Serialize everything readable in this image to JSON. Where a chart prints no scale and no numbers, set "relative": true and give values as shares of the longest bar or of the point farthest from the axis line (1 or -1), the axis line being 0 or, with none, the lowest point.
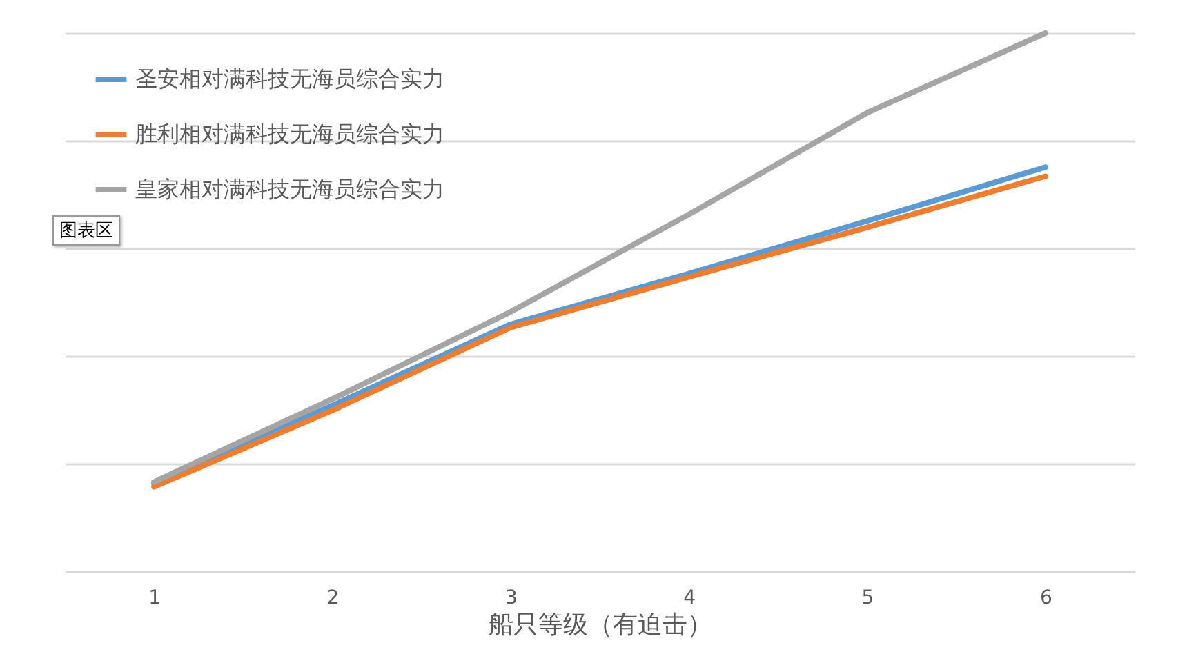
{
  "chart_data": {
    "type": "line",
    "xlabel": "船只等级（有迫击）",
    "categories": [
      "1",
      "2",
      "3",
      "4",
      "5",
      "6"
    ],
    "relative": true,
    "grid": "y",
    "legend": "top left",
    "line_style": "solid",
    "annotations": [
      "图表区"
    ],
    "series": [
      {
        "name": "圣安相对满科技无海员综合实力",
        "color": "#5b9bd5",
        "values": [
          0.163,
          0.308,
          0.459,
          0.553,
          0.651,
          0.751
        ]
      },
      {
        "name": "胜利相对满科技无海员综合实力",
        "color": "#ed7d31",
        "values": [
          0.157,
          0.299,
          0.453,
          0.547,
          0.639,
          0.734
        ]
      },
      {
        "name": "皇家相对满科技无海员综合实力",
        "color": "#a5a5a5",
        "values": [
          0.166,
          0.32,
          0.482,
          0.663,
          0.852,
          1
        ]
      }
    ]
  }
}
